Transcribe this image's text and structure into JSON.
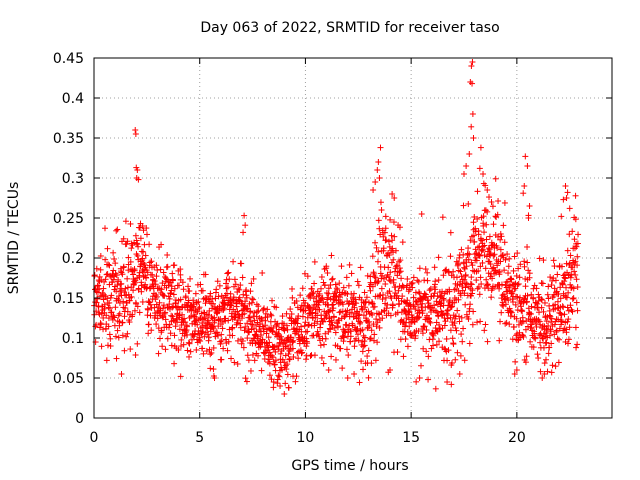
{
  "chart_data": {
    "type": "scatter",
    "title": "Day 063 of 2022, SRMTID for receiver taso",
    "xlabel": "GPS time / hours",
    "ylabel": "SRMTID / TECUs",
    "xlim": [
      0,
      24.5
    ],
    "ylim": [
      0,
      0.45
    ],
    "xticks": [
      0,
      5,
      10,
      15,
      20
    ],
    "xtick_labels": [
      "0",
      "5",
      "10",
      "15",
      "20"
    ],
    "yticks": [
      0,
      0.05,
      0.1,
      0.15,
      0.2,
      0.25,
      0.3,
      0.35,
      0.4,
      0.45
    ],
    "ytick_labels": [
      "0",
      "0.05",
      "0.1",
      "0.15",
      "0.2",
      "0.25",
      "0.3",
      "0.35",
      "0.4",
      "0.45"
    ],
    "grid": true,
    "marker": "plus",
    "color": "#ff0000",
    "series": [
      {
        "name": "SRMTID",
        "profile": {
          "x": [
            0,
            0.5,
            1,
            1.5,
            2,
            2.5,
            3,
            3.5,
            4,
            4.5,
            5,
            5.5,
            6,
            6.5,
            7,
            7.5,
            8,
            8.5,
            9,
            9.5,
            10,
            10.5,
            11,
            11.5,
            12,
            12.5,
            13,
            13.5,
            14,
            14.5,
            15,
            15.5,
            16,
            16.5,
            17,
            17.5,
            18,
            18.5,
            19,
            19.5,
            20,
            20.5,
            21,
            21.5,
            22,
            22.5,
            23
          ],
          "center": [
            0.14,
            0.15,
            0.15,
            0.16,
            0.18,
            0.17,
            0.15,
            0.15,
            0.14,
            0.13,
            0.12,
            0.12,
            0.13,
            0.14,
            0.14,
            0.12,
            0.1,
            0.09,
            0.09,
            0.1,
            0.12,
            0.13,
            0.13,
            0.13,
            0.13,
            0.12,
            0.12,
            0.17,
            0.18,
            0.16,
            0.14,
            0.13,
            0.13,
            0.13,
            0.14,
            0.17,
            0.19,
            0.2,
            0.2,
            0.17,
            0.14,
            0.13,
            0.12,
            0.12,
            0.14,
            0.17,
            0.19
          ],
          "spread": [
            0.03,
            0.035,
            0.04,
            0.04,
            0.045,
            0.04,
            0.035,
            0.035,
            0.035,
            0.03,
            0.03,
            0.03,
            0.03,
            0.035,
            0.035,
            0.03,
            0.03,
            0.025,
            0.025,
            0.03,
            0.035,
            0.035,
            0.035,
            0.03,
            0.03,
            0.03,
            0.035,
            0.045,
            0.045,
            0.04,
            0.035,
            0.035,
            0.035,
            0.035,
            0.04,
            0.05,
            0.05,
            0.05,
            0.045,
            0.04,
            0.035,
            0.04,
            0.035,
            0.035,
            0.035,
            0.04,
            0.045
          ]
        },
        "points_per_hour": 100,
        "x_end": 22.9,
        "extremes": [
          [
            1.95,
            0.36
          ],
          [
            1.98,
            0.355
          ],
          [
            2.0,
            0.313
          ],
          [
            2.05,
            0.31
          ],
          [
            2.02,
            0.3
          ],
          [
            2.1,
            0.298
          ],
          [
            1.05,
            0.234
          ],
          [
            2.2,
            0.243
          ],
          [
            2.3,
            0.24
          ],
          [
            7.1,
            0.253
          ],
          [
            7.15,
            0.241
          ],
          [
            7.05,
            0.232
          ],
          [
            13.3,
            0.295
          ],
          [
            13.4,
            0.31
          ],
          [
            13.5,
            0.3
          ],
          [
            13.55,
            0.338
          ],
          [
            13.45,
            0.32
          ],
          [
            13.6,
            0.26
          ],
          [
            13.2,
            0.285
          ],
          [
            14.1,
            0.28
          ],
          [
            14.2,
            0.275
          ],
          [
            13.8,
            0.252
          ],
          [
            15.5,
            0.255
          ],
          [
            16.5,
            0.251
          ],
          [
            17.85,
            0.44
          ],
          [
            17.9,
            0.445
          ],
          [
            17.8,
            0.42
          ],
          [
            17.88,
            0.418
          ],
          [
            17.92,
            0.38
          ],
          [
            17.84,
            0.364
          ],
          [
            17.95,
            0.35
          ],
          [
            17.75,
            0.33
          ],
          [
            17.6,
            0.315
          ],
          [
            17.5,
            0.305
          ],
          [
            18.3,
            0.338
          ],
          [
            18.25,
            0.312
          ],
          [
            18.4,
            0.305
          ],
          [
            18.6,
            0.285
          ],
          [
            19.0,
            0.299
          ],
          [
            18.8,
            0.27
          ],
          [
            20.4,
            0.327
          ],
          [
            20.5,
            0.315
          ],
          [
            20.35,
            0.29
          ],
          [
            20.3,
            0.281
          ],
          [
            20.6,
            0.265
          ],
          [
            20.55,
            0.25
          ],
          [
            22.3,
            0.29
          ],
          [
            22.4,
            0.282
          ],
          [
            22.35,
            0.275
          ],
          [
            22.2,
            0.273
          ],
          [
            22.5,
            0.262
          ],
          [
            22.1,
            0.252
          ],
          [
            1.3,
            0.055
          ],
          [
            4.1,
            0.052
          ],
          [
            5.5,
            0.062
          ],
          [
            5.7,
            0.05
          ],
          [
            8.5,
            0.045
          ],
          [
            9.0,
            0.03
          ],
          [
            9.2,
            0.038
          ],
          [
            8.8,
            0.04
          ],
          [
            11.1,
            0.06
          ],
          [
            12.0,
            0.05
          ],
          [
            12.3,
            0.055
          ],
          [
            14.0,
            0.06
          ],
          [
            15.4,
            0.05
          ],
          [
            15.8,
            0.048
          ],
          [
            16.7,
            0.045
          ],
          [
            16.9,
            0.042
          ],
          [
            17.3,
            0.055
          ],
          [
            19.9,
            0.055
          ],
          [
            20.0,
            0.06
          ],
          [
            21.2,
            0.05
          ],
          [
            21.3,
            0.055
          ],
          [
            22.8,
            0.088
          ],
          [
            22.85,
            0.092
          ]
        ]
      }
    ]
  }
}
